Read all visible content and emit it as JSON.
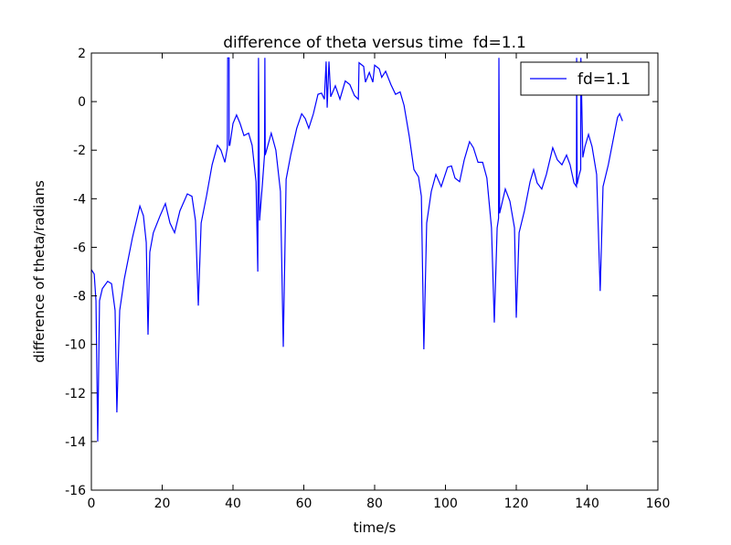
{
  "chart_data": {
    "type": "line",
    "title": "difference of theta versus time  fd=1.1",
    "xlabel": "time/s",
    "ylabel": "difference of theta/radians",
    "xlim": [
      0,
      160
    ],
    "ylim": [
      -16,
      2
    ],
    "xticks": [
      0,
      20,
      40,
      60,
      80,
      100,
      120,
      140,
      160
    ],
    "yticks": [
      -16,
      -14,
      -12,
      -10,
      -8,
      -6,
      -4,
      -2,
      0,
      2
    ],
    "legend": "upper right",
    "series": [
      {
        "name": "fd=1.1",
        "color": "#0000ff",
        "x": [
          0,
          0.8,
          1.3,
          1.8,
          2.3,
          3.1,
          4.6,
          5.7,
          6.7,
          7.2,
          8,
          9.3,
          11.6,
          13.7,
          14.7,
          15.5,
          16,
          16.5,
          17.5,
          19.4,
          20.9,
          22.2,
          23.5,
          25,
          27.1,
          28.4,
          29.4,
          30.2,
          31,
          32.5,
          34.1,
          35.6,
          36.6,
          37.7,
          38.4,
          38.5,
          38.5,
          38.9,
          38.9,
          39.1,
          40,
          41,
          42,
          43.1,
          44.4,
          45.4,
          46.5,
          47,
          47.2,
          47.5,
          48.3,
          48.9,
          49,
          49.1,
          50.8,
          52.1,
          53.4,
          54.2,
          55,
          56.3,
          58,
          59.4,
          60.4,
          61.4,
          62.7,
          64,
          65,
          65.8,
          66.3,
          66.6,
          67.1,
          67.6,
          68.9,
          70.2,
          71.7,
          73,
          74.3,
          75.4,
          75.6,
          76.9,
          77.4,
          78.5,
          79.5,
          80,
          81.3,
          82,
          83.1,
          84.6,
          85.9,
          87.2,
          88.3,
          89.8,
          91.1,
          92.4,
          93.2,
          93.9,
          94.7,
          96,
          97.3,
          98.8,
          100.6,
          101.7,
          102.7,
          104,
          105.3,
          106.8,
          107.9,
          109.2,
          110.5,
          111.7,
          113,
          113.8,
          114.6,
          115,
          115.1,
          115.3,
          116.9,
          118.2,
          119.5,
          120,
          120.8,
          122.3,
          123.9,
          124.9,
          125.9,
          127.2,
          128.5,
          130.3,
          131.6,
          132.9,
          134.2,
          135.2,
          136.3,
          137,
          137.05,
          137.2,
          137.8,
          138.2,
          138.25,
          138.8,
          139.4,
          140.4,
          141.4,
          142.7,
          143.7,
          144.5,
          146,
          147.6,
          148.6,
          149.2,
          150
        ],
        "values": [
          -6.92,
          -7.1,
          -8.2,
          -14.0,
          -8.2,
          -7.7,
          -7.4,
          -7.5,
          -8.6,
          -12.8,
          -8.6,
          -7.3,
          -5.6,
          -4.3,
          -4.7,
          -5.8,
          -9.6,
          -6.2,
          -5.4,
          -4.7,
          -4.2,
          -5.0,
          -5.4,
          -4.5,
          -3.8,
          -3.9,
          -4.9,
          -8.4,
          -5.0,
          -3.9,
          -2.6,
          -1.8,
          -2.0,
          -2.5,
          -1.9,
          1.8,
          1.8,
          1.8,
          -1.8,
          -1.8,
          -0.9,
          -0.55,
          -0.9,
          -1.4,
          -1.3,
          -1.8,
          -3.3,
          -7.0,
          1.8,
          -4.9,
          -3.4,
          -2.2,
          1.8,
          -2.2,
          -1.3,
          -2.0,
          -3.7,
          -10.1,
          -3.2,
          -2.2,
          -1.1,
          -0.5,
          -0.7,
          -1.1,
          -0.5,
          0.3,
          0.35,
          0.1,
          1.65,
          -0.25,
          1.65,
          0.2,
          0.65,
          0.1,
          0.85,
          0.7,
          0.25,
          0.1,
          1.6,
          1.45,
          0.8,
          1.2,
          0.8,
          1.5,
          1.35,
          1.0,
          1.25,
          0.7,
          0.3,
          0.4,
          -0.15,
          -1.45,
          -2.8,
          -3.1,
          -3.9,
          -10.2,
          -5.0,
          -3.7,
          -3.0,
          -3.5,
          -2.7,
          -2.65,
          -3.15,
          -3.3,
          -2.4,
          -1.65,
          -1.9,
          -2.5,
          -2.5,
          -3.15,
          -5.2,
          -9.1,
          -5.2,
          -4.8,
          1.8,
          -4.6,
          -3.6,
          -4.1,
          -5.2,
          -8.9,
          -5.4,
          -4.5,
          -3.3,
          -2.8,
          -3.35,
          -3.6,
          -3.0,
          -1.9,
          -2.4,
          -2.6,
          -2.2,
          -2.6,
          -3.35,
          -3.5,
          1.8,
          -3.4,
          -3.0,
          -2.8,
          1.8,
          -2.3,
          -1.85,
          -1.35,
          -1.85,
          -3.0,
          -7.8,
          -3.5,
          -2.6,
          -1.4,
          -0.65,
          -0.5,
          -0.8
        ]
      }
    ]
  }
}
